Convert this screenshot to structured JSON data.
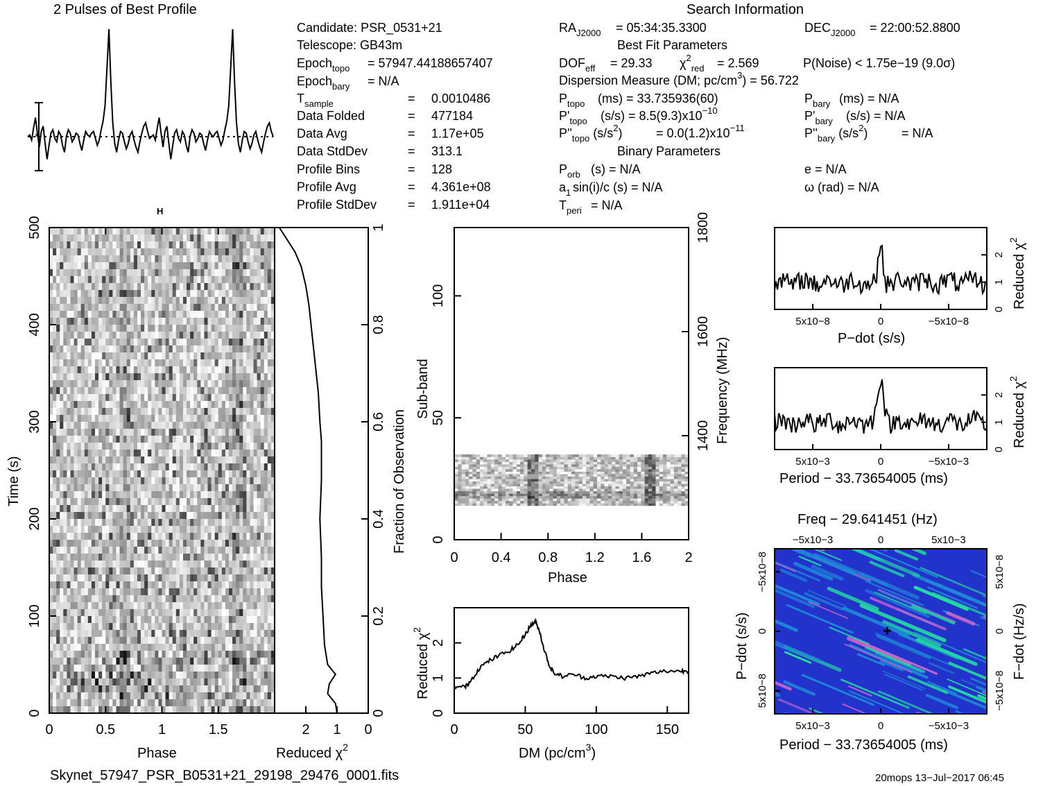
{
  "header": {
    "profile_title": "2 Pulses of Best Profile",
    "search_title": "Search Information"
  },
  "info": {
    "candidate": "Candidate:  PSR_0531+21",
    "telescope": "Telescope:  GB43m",
    "epoch_topo": "= 57947.44188657407",
    "epoch_bary": "= N/A",
    "rows": [
      {
        "label": "Data Folded",
        "value": "477184"
      },
      {
        "label": "Data Avg",
        "value": "1.17e+05"
      },
      {
        "label": "Data StdDev",
        "value": "313.1"
      },
      {
        "label": "Profile Bins",
        "value": "128"
      },
      {
        "label": "Profile Avg",
        "value": "4.361e+08"
      },
      {
        "label": "Profile StdDev",
        "value": "1.911e+04"
      }
    ],
    "t_sample": "0.0010486",
    "ra": "= 05:34:35.3300",
    "dec": "= 22:00:52.8800",
    "best_fit_header": "Best Fit Parameters",
    "dof_eff": "= 29.33",
    "chi2_red": "= 2.569",
    "p_noise": "P(Noise) < 1.75e−19   (9.0σ)",
    "dm_line": "Dispersion Measure (DM; pc/cm",
    "dm_value": ") = 56.722",
    "p_topo": "(ms) =  33.735936(60)",
    "p_bary": "(ms) = N/A",
    "pd_topo": "(s/s) =  8.5(9.3)x10",
    "pd_topo_exp": "−10",
    "pd_bary": "(s/s) = N/A",
    "pdd_topo": "= 0.0(1.2)x10",
    "pdd_topo_exp": "−11",
    "pdd_bary": "= N/A",
    "binary_header": "Binary Parameters",
    "p_orb": "(s) = N/A",
    "asini": "sin(i)/c (s) = N/A",
    "t_peri": "= N/A",
    "e": "e = N/A",
    "omega": "ω (rad) = N/A"
  },
  "footer": {
    "filename": "Skynet_57947_PSR_B0531+21_29198_29476_0001.fits",
    "stamp": "20mops 13−Jul−2017 06:45"
  },
  "colors": {
    "ink": "#000000",
    "ppdot_base": "#2233cc",
    "ppdot_mid": "#1e88d8",
    "ppdot_high": "#22e0a0",
    "ppdot_peak": "#cc66cc"
  },
  "chart_data": [
    {
      "type": "line",
      "name": "pulse_profile",
      "title": "2 Pulses of Best Profile",
      "x_range": [
        0,
        2
      ],
      "bins": 128,
      "peak_phase": [
        0.665,
        1.665
      ],
      "values": [
        0.0,
        0.1,
        -0.2,
        0.5,
        1.1,
        0.2,
        -0.6,
        0.3,
        0.6,
        -0.4,
        -1.3,
        -0.5,
        0.2,
        0.4,
        -0.1,
        -0.3,
        0.3,
        0.1,
        -0.5,
        -0.9,
        0.0,
        0.4,
        0.2,
        -0.3,
        -0.1,
        0.2,
        0.1,
        -0.4,
        -0.8,
        -0.2,
        0.3,
        0.1,
        0.0,
        0.2,
        0.3,
        -0.1,
        -0.5,
        -0.2,
        0.4,
        0.9,
        1.8,
        4.0,
        6.2,
        3.1,
        0.8,
        -0.4,
        -0.9,
        -0.2,
        0.3,
        0.2,
        -0.3,
        -0.7,
        -0.4,
        0.1,
        0.3,
        -0.2,
        -0.6,
        -0.9,
        -0.3,
        0.2,
        0.6,
        0.8,
        0.3,
        -0.1,
        0.0,
        0.1,
        -0.2,
        0.5,
        1.1,
        0.2,
        -0.6,
        0.3,
        0.6,
        -0.4,
        -1.3,
        -0.5,
        0.2,
        0.4,
        -0.1,
        -0.3,
        0.3,
        0.1,
        -0.5,
        -0.9,
        0.0,
        0.4,
        0.2,
        -0.3,
        -0.1,
        0.2,
        0.1,
        -0.4,
        -0.8,
        -0.2,
        0.3,
        0.1,
        0.0,
        0.2,
        0.3,
        -0.1,
        -0.5,
        -0.2,
        0.4,
        0.9,
        1.8,
        4.0,
        6.2,
        3.1,
        0.8,
        -0.4,
        -0.9,
        -0.2,
        0.3,
        0.2,
        -0.3,
        -0.7,
        -0.4,
        0.1,
        0.3,
        -0.2,
        -0.6,
        -0.9,
        -0.3,
        0.2,
        0.6,
        0.8,
        0.3,
        0.0
      ]
    },
    {
      "type": "heatmap",
      "name": "time_vs_phase",
      "xlabel": "Phase",
      "ylabel": "Time (s)",
      "x_range": [
        0,
        2
      ],
      "y_range": [
        0,
        500
      ],
      "x_ticks": [
        "0",
        "0.5",
        "1",
        "1.5"
      ],
      "y_ticks": [
        "0",
        "100",
        "200",
        "300",
        "400",
        "500"
      ],
      "colormap": "grayscale"
    },
    {
      "type": "line",
      "name": "reduced_chi2_vs_fraction",
      "xlabel": "Reduced χ",
      "ylabel": "Fraction of Observation",
      "x_range": [
        3,
        0
      ],
      "y_range": [
        0,
        1
      ],
      "x_ticks": [
        "2",
        "1",
        "0"
      ],
      "y_ticks": [
        "0",
        "0.2",
        "0.4",
        "0.6",
        "0.8",
        "1"
      ],
      "points": [
        [
          1.0,
          0.0
        ],
        [
          1.05,
          0.02
        ],
        [
          1.3,
          0.04
        ],
        [
          1.25,
          0.06
        ],
        [
          1.05,
          0.08
        ],
        [
          1.3,
          0.1
        ],
        [
          1.4,
          0.14
        ],
        [
          1.45,
          0.2
        ],
        [
          1.5,
          0.26
        ],
        [
          1.5,
          0.32
        ],
        [
          1.55,
          0.4
        ],
        [
          1.5,
          0.48
        ],
        [
          1.5,
          0.56
        ],
        [
          1.55,
          0.6
        ],
        [
          1.6,
          0.66
        ],
        [
          1.7,
          0.72
        ],
        [
          1.8,
          0.78
        ],
        [
          1.9,
          0.84
        ],
        [
          2.0,
          0.88
        ],
        [
          2.15,
          0.92
        ],
        [
          2.35,
          0.95
        ],
        [
          2.55,
          0.97
        ],
        [
          2.75,
          0.99
        ],
        [
          2.85,
          1.0
        ]
      ]
    },
    {
      "type": "heatmap",
      "name": "subband_vs_phase",
      "xlabel": "Phase",
      "ylabel": "Sub-band",
      "y2label": "Frequency (MHz)",
      "x_range": [
        0,
        2
      ],
      "y_range": [
        0,
        128
      ],
      "y2_range": [
        1200,
        1800
      ],
      "x_ticks": [
        "0",
        "0.4",
        "0.8",
        "1.2",
        "1.6",
        "2"
      ],
      "y_ticks": [
        "0",
        "50",
        "100"
      ],
      "y2_ticks": [
        "1400",
        "1600",
        "1800"
      ],
      "active_subbands": [
        14,
        35
      ],
      "colormap": "grayscale"
    },
    {
      "type": "line",
      "name": "reduced_chi2_vs_dm",
      "xlabel": "DM (pc/cm",
      "ylabel": "Reduced χ",
      "x_range": [
        0,
        165
      ],
      "y_range": [
        0,
        3
      ],
      "x_ticks": [
        "0",
        "50",
        "100",
        "150"
      ],
      "y_ticks": [
        "0",
        "1",
        "2"
      ],
      "points": [
        [
          0,
          0.75
        ],
        [
          8,
          0.75
        ],
        [
          12,
          0.95
        ],
        [
          18,
          1.3
        ],
        [
          25,
          1.5
        ],
        [
          32,
          1.65
        ],
        [
          40,
          1.8
        ],
        [
          46,
          2.0
        ],
        [
          50,
          2.25
        ],
        [
          54,
          2.5
        ],
        [
          57,
          2.6
        ],
        [
          60,
          2.35
        ],
        [
          63,
          1.85
        ],
        [
          67,
          1.35
        ],
        [
          70,
          1.15
        ],
        [
          76,
          1.05
        ],
        [
          85,
          1.1
        ],
        [
          92,
          1.0
        ],
        [
          100,
          1.05
        ],
        [
          110,
          1.05
        ],
        [
          120,
          1.0
        ],
        [
          130,
          1.05
        ],
        [
          140,
          1.15
        ],
        [
          150,
          1.2
        ],
        [
          160,
          1.2
        ],
        [
          165,
          1.2
        ]
      ]
    },
    {
      "type": "line",
      "name": "reduced_chi2_vs_pdot",
      "xlabel": "P−dot (s/s)",
      "ylabel": "Reduced χ",
      "y_range": [
        0,
        3
      ],
      "x_ticks": [
        "5x10−8",
        "0",
        "−5x10−8"
      ],
      "y_ticks": [
        "0",
        "1",
        "2"
      ],
      "peak": {
        "x": 0,
        "y": 2.6
      },
      "baseline": 1.0
    },
    {
      "type": "line",
      "name": "reduced_chi2_vs_period",
      "xlabel": "Period − 33.73654005 (ms)",
      "ylabel": "Reduced χ",
      "y_range": [
        0,
        3
      ],
      "x_ticks": [
        "5x10−3",
        "0",
        "−5x10−3"
      ],
      "y_ticks": [
        "0",
        "1",
        "2"
      ],
      "peak": {
        "x": 0,
        "y": 2.6
      },
      "baseline": 1.0
    },
    {
      "type": "heatmap",
      "name": "period_pdot_plane",
      "title": "Freq − 29.641451 (Hz)",
      "xlabel": "Period − 33.73654005 (ms)",
      "ylabel": "P−dot (s/s)",
      "y2label": "F−dot (Hz/s)",
      "x_ticks_bottom": [
        "5x10−3",
        "0",
        "−5x10−3"
      ],
      "x_ticks_top": [
        "−5x10−3",
        "0",
        "5x10−3"
      ],
      "y_ticks_left": [
        "−5x10−8",
        "0",
        "5x10−8"
      ],
      "y_ticks_right": [
        "5x10−8",
        "0",
        "−5x10−8"
      ],
      "best_marker": "+"
    }
  ]
}
